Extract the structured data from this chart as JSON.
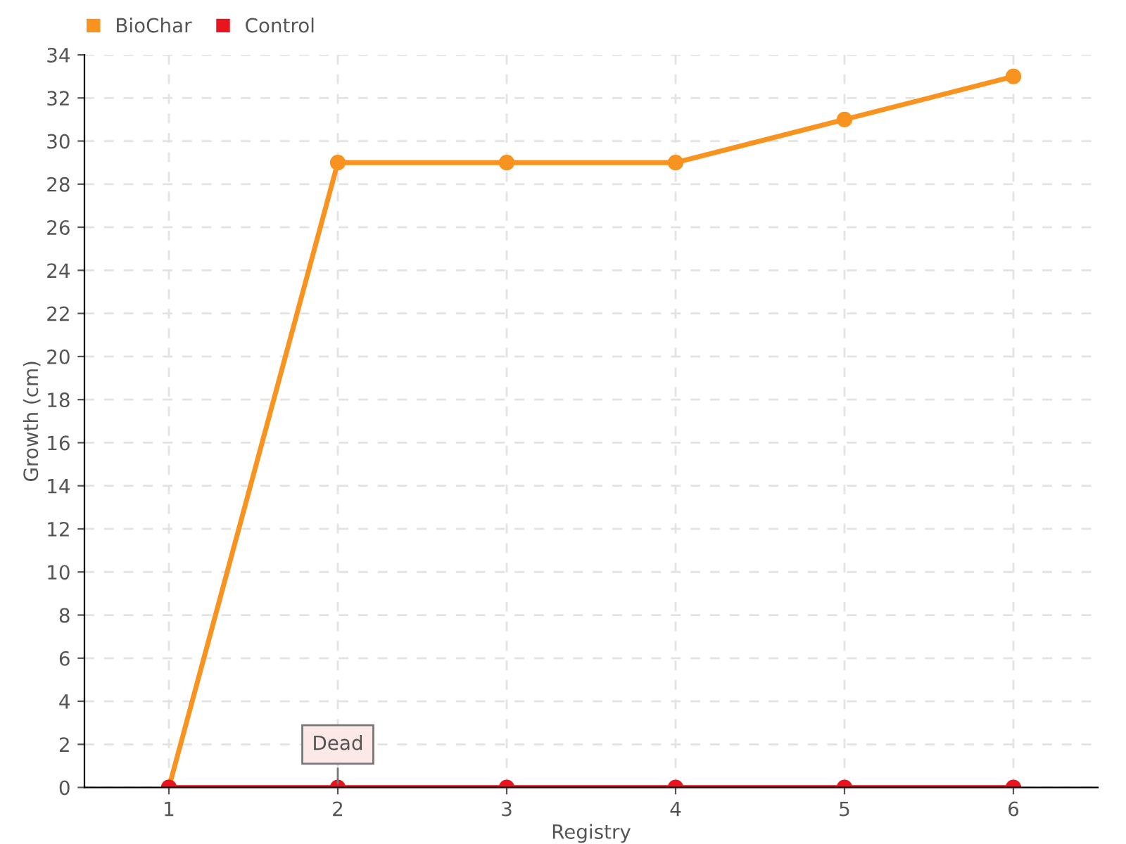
{
  "chart_data": {
    "type": "line",
    "xlabel": "Registry",
    "ylabel": "Growth (cm)",
    "x": [
      1,
      2,
      3,
      4,
      5,
      6
    ],
    "series": [
      {
        "name": "BioChar",
        "color": "#f7931e",
        "values": [
          0,
          29,
          29,
          29,
          31,
          33
        ]
      },
      {
        "name": "Control",
        "color": "#e8141e",
        "values": [
          0,
          0,
          0,
          0,
          0,
          0
        ]
      }
    ],
    "xlim": [
      0.5,
      6.5
    ],
    "xticks": [
      1,
      2,
      3,
      4,
      5,
      6
    ],
    "ylim": [
      0,
      34
    ],
    "yticks": [
      0,
      2,
      4,
      6,
      8,
      10,
      12,
      14,
      16,
      18,
      20,
      22,
      24,
      26,
      28,
      30,
      32,
      34
    ],
    "grid": true,
    "legend": "top left",
    "marker": "circle",
    "line_style": "solid",
    "annotations": [
      {
        "text": "Dead",
        "x": 2,
        "y": 0
      }
    ]
  }
}
